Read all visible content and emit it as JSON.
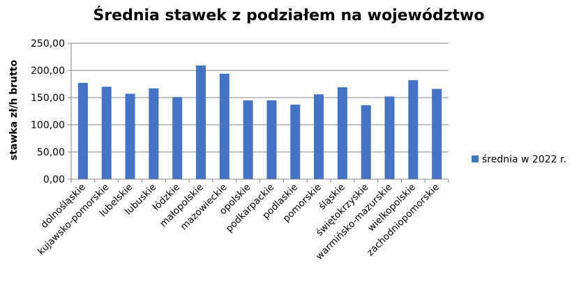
{
  "chart_data": {
    "type": "bar",
    "title": "Średnia stawek z podziałem na województwo",
    "xlabel": "",
    "ylabel": "stawka zł/h brutto",
    "ylim": [
      0,
      250
    ],
    "yticks": [
      "0,00",
      "50,00",
      "100,00",
      "150,00",
      "200,00",
      "250,00"
    ],
    "grid": true,
    "legend_position": "right",
    "categories": [
      "dolnośląskie",
      "kujawsko-pomorskie",
      "lubelskie",
      "lubuskie",
      "łódzkie",
      "małopolskie",
      "mazowieckie",
      "opolskie",
      "podkarpackie",
      "podlaskie",
      "pomorskie",
      "śląskie",
      "świętokrzyskie",
      "warmińsko-mazurskie",
      "wielkopolskie",
      "zachodniopomorskie"
    ],
    "series": [
      {
        "name": "średnia w 2022 r.",
        "color": "#4472C4",
        "values": [
          177,
          170,
          157,
          167,
          151,
          209,
          194,
          145,
          145,
          137,
          156,
          169,
          136,
          152,
          182,
          166
        ]
      }
    ]
  }
}
